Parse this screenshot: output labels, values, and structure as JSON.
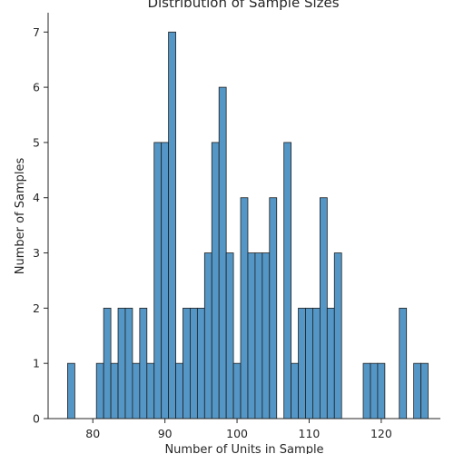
{
  "chart_data": {
    "type": "bar",
    "title": "Distribution of Sample Sizes",
    "xlabel": "Number of Units in Sample",
    "ylabel": "Number of Samples",
    "xlim": [
      73.8,
      128.2
    ],
    "ylim": [
      0,
      7.35
    ],
    "xticks": [
      80,
      90,
      100,
      110,
      120
    ],
    "yticks": [
      0,
      1,
      2,
      3,
      4,
      5,
      6,
      7
    ],
    "bin_width": 1,
    "bins": [
      {
        "x": 77,
        "count": 1
      },
      {
        "x": 81,
        "count": 1
      },
      {
        "x": 82,
        "count": 2
      },
      {
        "x": 83,
        "count": 1
      },
      {
        "x": 84,
        "count": 2
      },
      {
        "x": 85,
        "count": 2
      },
      {
        "x": 86,
        "count": 1
      },
      {
        "x": 87,
        "count": 2
      },
      {
        "x": 88,
        "count": 1
      },
      {
        "x": 89,
        "count": 5
      },
      {
        "x": 90,
        "count": 5
      },
      {
        "x": 91,
        "count": 7
      },
      {
        "x": 92,
        "count": 1
      },
      {
        "x": 93,
        "count": 2
      },
      {
        "x": 94,
        "count": 2
      },
      {
        "x": 95,
        "count": 2
      },
      {
        "x": 96,
        "count": 3
      },
      {
        "x": 97,
        "count": 5
      },
      {
        "x": 98,
        "count": 6
      },
      {
        "x": 99,
        "count": 3
      },
      {
        "x": 100,
        "count": 1
      },
      {
        "x": 101,
        "count": 4
      },
      {
        "x": 102,
        "count": 3
      },
      {
        "x": 103,
        "count": 3
      },
      {
        "x": 104,
        "count": 3
      },
      {
        "x": 105,
        "count": 4
      },
      {
        "x": 107,
        "count": 5
      },
      {
        "x": 108,
        "count": 1
      },
      {
        "x": 109,
        "count": 2
      },
      {
        "x": 110,
        "count": 2
      },
      {
        "x": 111,
        "count": 2
      },
      {
        "x": 112,
        "count": 4
      },
      {
        "x": 113,
        "count": 2
      },
      {
        "x": 114,
        "count": 3
      },
      {
        "x": 118,
        "count": 1
      },
      {
        "x": 119,
        "count": 1
      },
      {
        "x": 120,
        "count": 1
      },
      {
        "x": 123,
        "count": 2
      },
      {
        "x": 125,
        "count": 1
      },
      {
        "x": 126,
        "count": 1
      }
    ],
    "grid": false,
    "bar_color": "#5497c7",
    "bar_edge_color": "#1f1f1f"
  }
}
